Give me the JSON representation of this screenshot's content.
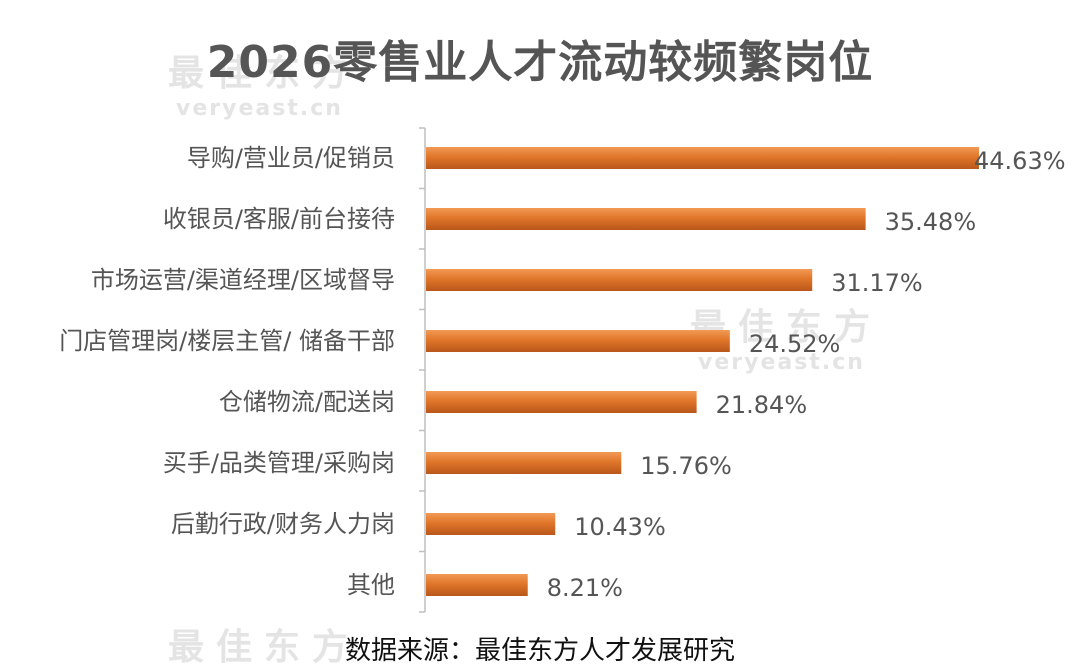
{
  "chart_data": {
    "type": "bar",
    "orientation": "horizontal",
    "title": "2026零售业人才流动较频繁岗位",
    "categories": [
      "导购/营业员/促销员",
      "收银员/客服/前台接待",
      "市场运营/渠道经理/区域督导",
      "门店管理岗/楼层主管/ 储备干部",
      "仓储物流/配送岗",
      "买手/品类管理/采购岗",
      "后勤行政/财务人力岗",
      "其他"
    ],
    "values": [
      44.63,
      35.48,
      31.17,
      24.52,
      21.84,
      15.76,
      10.43,
      8.21
    ],
    "value_labels": [
      "44.63%",
      "35.48%",
      "31.17%",
      "24.52%",
      "21.84%",
      "15.76%",
      "10.43%",
      "8.21%"
    ],
    "unit": "%",
    "xlim": [
      0,
      44.63
    ],
    "grid": false,
    "bar_color": "#e0762a"
  },
  "source": "数据来源：最佳东方人才发展研究",
  "watermark": {
    "name": "最佳东方",
    "site": "veryeast.cn"
  }
}
